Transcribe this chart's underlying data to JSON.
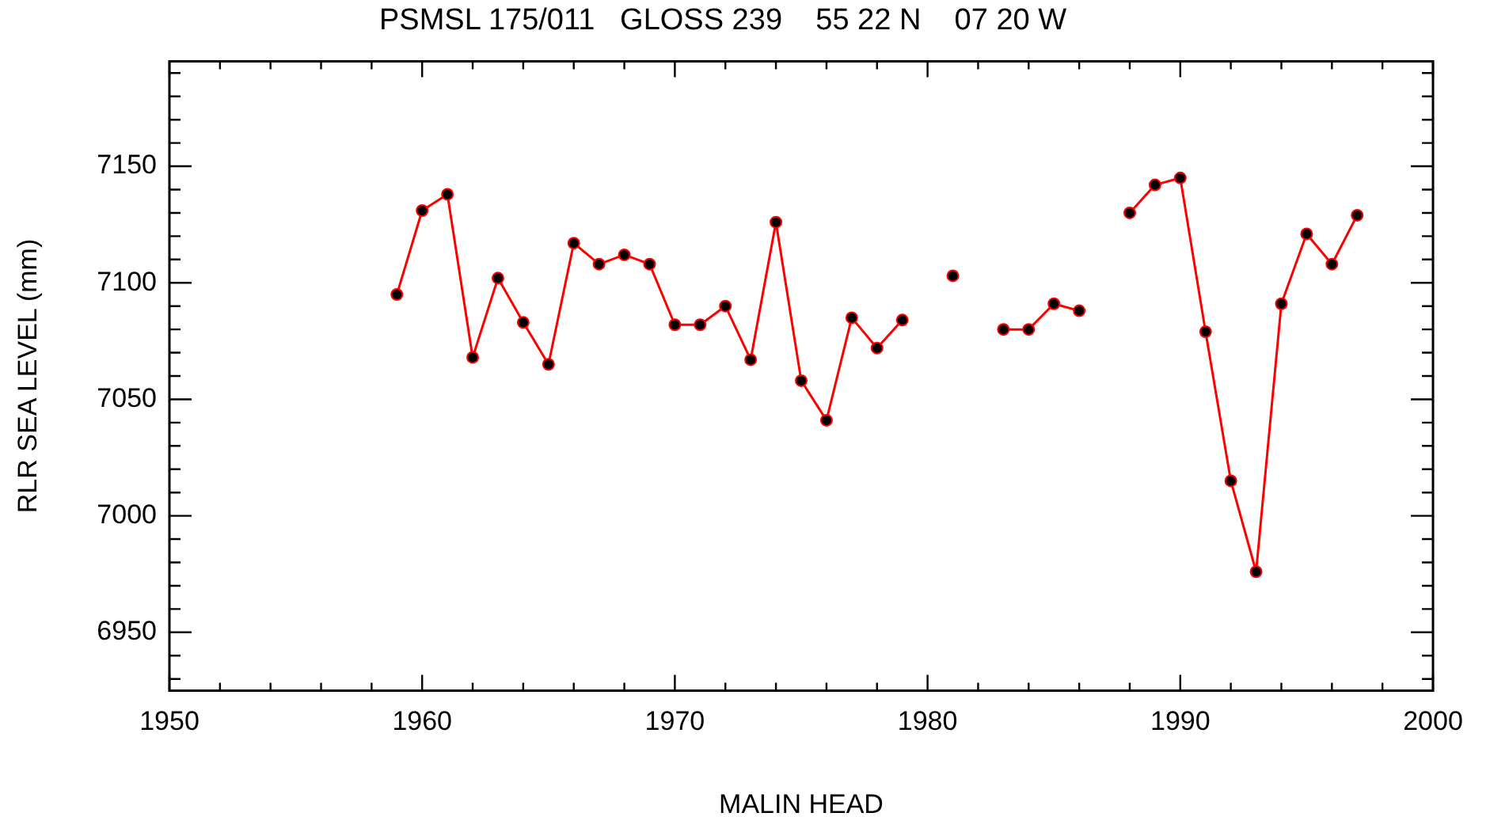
{
  "chart_data": {
    "type": "line",
    "title": "PSMSL 175/011   GLOSS 239    55 22 N    07 20 W",
    "xlabel": "MALIN HEAD",
    "ylabel": "RLR SEA LEVEL (mm)",
    "x": [
      1959,
      1960,
      1961,
      1962,
      1963,
      1964,
      1965,
      1966,
      1967,
      1968,
      1969,
      1970,
      1971,
      1972,
      1973,
      1974,
      1975,
      1976,
      1977,
      1978,
      1979,
      1980,
      1981,
      1982,
      1983,
      1984,
      1985,
      1986,
      1987,
      1988,
      1989,
      1990,
      1991,
      1992,
      1993,
      1994,
      1995,
      1996,
      1997
    ],
    "series": [
      {
        "color": "#ff0000",
        "values": [
          7095,
          7131,
          7138,
          7068,
          7102,
          7083,
          7065,
          7117,
          7108,
          7112,
          7108,
          7082,
          7082,
          7090,
          7067,
          7126,
          7058,
          7041,
          7085,
          7072,
          7084,
          null,
          7103,
          null,
          7080,
          7080,
          7091,
          7088,
          null,
          7130,
          7142,
          7145,
          7079,
          7015,
          6976,
          7091,
          7121,
          7108,
          7129
        ]
      }
    ],
    "xlim": [
      1950,
      2000
    ],
    "xticks": [
      1950,
      {
        "value": 1952,
        "label": null
      },
      {
        "value": 1954,
        "label": null
      },
      {
        "value": 1956,
        "label": null
      },
      {
        "value": 1958,
        "label": null
      },
      1960,
      {
        "value": 1962,
        "label": null
      },
      {
        "value": 1964,
        "label": null
      },
      {
        "value": 1966,
        "label": null
      },
      {
        "value": 1968,
        "label": null
      },
      1970,
      {
        "value": 1972,
        "label": null
      },
      {
        "value": 1974,
        "label": null
      },
      {
        "value": 1976,
        "label": null
      },
      {
        "value": 1978,
        "label": null
      },
      1980,
      {
        "value": 1982,
        "label": null
      },
      {
        "value": 1984,
        "label": null
      },
      {
        "value": 1986,
        "label": null
      },
      {
        "value": 1988,
        "label": null
      },
      1990,
      {
        "value": 1992,
        "label": null
      },
      {
        "value": 1994,
        "label": null
      },
      {
        "value": 1996,
        "label": null
      },
      {
        "value": 1998,
        "label": null
      },
      2000
    ],
    "ylim": [
      6925,
      7195
    ],
    "yticks": [
      {
        "value": 6930,
        "label": null
      },
      {
        "value": 6940,
        "label": null
      },
      6950,
      {
        "value": 6960,
        "label": null
      },
      {
        "value": 6970,
        "label": null
      },
      {
        "value": 6980,
        "label": null
      },
      {
        "value": 6990,
        "label": null
      },
      7000,
      {
        "value": 7010,
        "label": null
      },
      {
        "value": 7020,
        "label": null
      },
      {
        "value": 7030,
        "label": null
      },
      {
        "value": 7040,
        "label": null
      },
      7050,
      {
        "value": 7060,
        "label": null
      },
      {
        "value": 7070,
        "label": null
      },
      {
        "value": 7080,
        "label": null
      },
      {
        "value": 7090,
        "label": null
      },
      7100,
      {
        "value": 7110,
        "label": null
      },
      {
        "value": 7120,
        "label": null
      },
      {
        "value": 7130,
        "label": null
      },
      {
        "value": 7140,
        "label": null
      },
      7150,
      {
        "value": 7160,
        "label": null
      },
      {
        "value": 7170,
        "label": null
      },
      {
        "value": 7180,
        "label": null
      },
      {
        "value": 7190,
        "label": null
      }
    ],
    "marker": "circle",
    "grid": false,
    "legend": false
  }
}
